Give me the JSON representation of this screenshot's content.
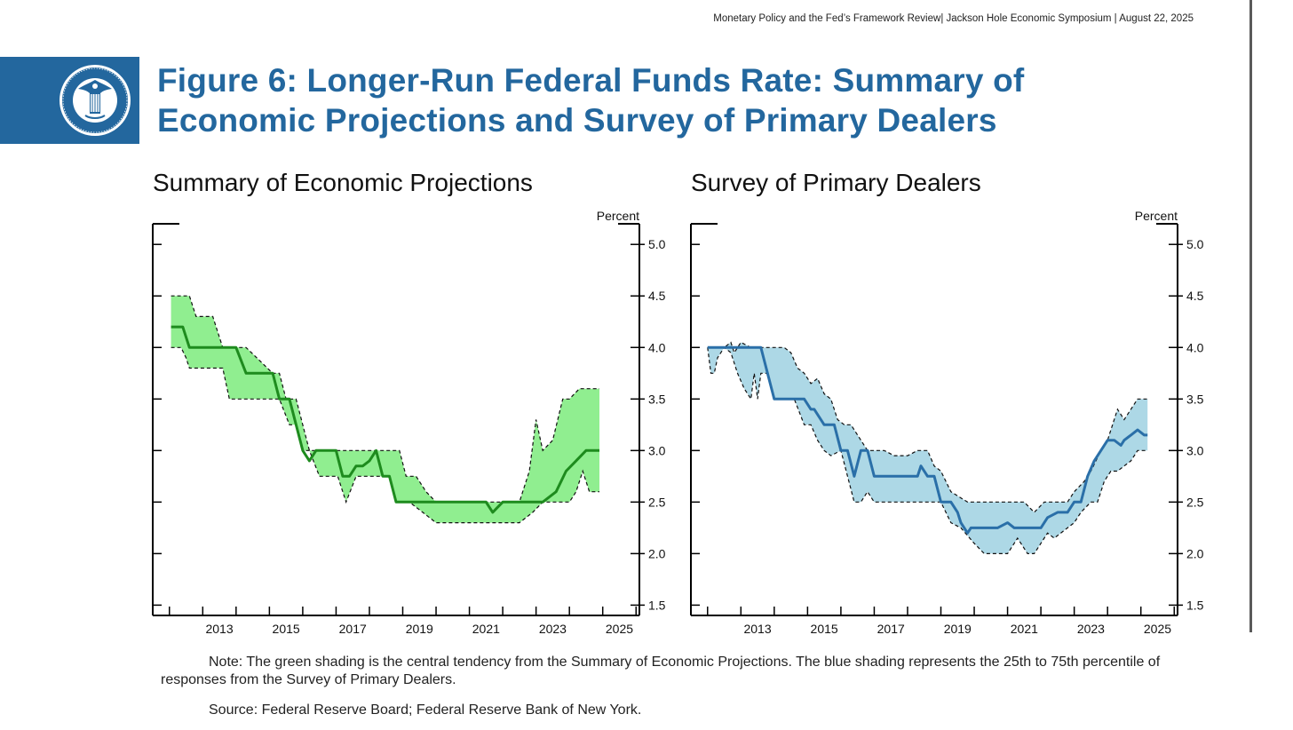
{
  "header": {
    "line": "Monetary Policy and the Fed’s Framework Review| Jackson Hole Economic Symposium | August 22, 2025"
  },
  "title": {
    "line1": "Figure 6: Longer-Run Federal Funds Rate: Summary of",
    "line2": "Economic Projections and Survey of Primary Dealers"
  },
  "logo": {
    "icon": "federal-reserve-seal-icon",
    "text": "BOARD OF GOVERNORS THE FEDERAL RESERVE SYSTEM"
  },
  "colors": {
    "title_blue": "#23679e",
    "sep_fill": "#90ee90",
    "sep_line": "#1e8b1e",
    "spd_fill": "#add8e6",
    "spd_line": "#2a6fa8"
  },
  "chart_data": [
    {
      "type": "area",
      "title": "Summary of Economic Projections",
      "ylabel": "Percent",
      "ylim": [
        1.4,
        5.2
      ],
      "xlim": [
        2011.5,
        2026.1
      ],
      "y_ticks": [
        "5.0",
        "4.5",
        "4.0",
        "3.5",
        "3.0",
        "2.5",
        "2.0",
        "1.5"
      ],
      "x_ticks": [
        "2013",
        "2015",
        "2017",
        "2019",
        "2021",
        "2023",
        "2025"
      ],
      "grid": false,
      "legend": "none",
      "series": [
        {
          "role": "central tendency upper",
          "x": [
            2012.05,
            2012.6,
            2012.8,
            2013.3,
            2013.6,
            2014.3,
            2014.3,
            2015.1,
            2015.3,
            2015.5,
            2015.8,
            2016.0,
            2016.2,
            2016.4,
            2017.0,
            2018.0,
            2018.9,
            2019.1,
            2019.4,
            2019.7,
            2020.0,
            2020.6,
            2021.6,
            2022.0,
            2022.5,
            2022.6,
            2022.8,
            2023.0,
            2023.2,
            2023.5,
            2023.8,
            2024.0,
            2024.3,
            2024.6,
            2024.9
          ],
          "y": [
            4.5,
            4.5,
            4.3,
            4.3,
            4.0,
            4.0,
            4.0,
            3.75,
            3.75,
            3.5,
            3.5,
            3.25,
            3.0,
            3.0,
            3.0,
            3.0,
            3.0,
            2.75,
            2.75,
            2.6,
            2.5,
            2.5,
            2.5,
            2.5,
            2.5,
            2.6,
            2.8,
            3.3,
            3.0,
            3.1,
            3.5,
            3.5,
            3.6,
            3.6,
            3.6
          ]
        },
        {
          "role": "central tendency lower",
          "x": [
            2012.05,
            2012.35,
            2012.5,
            2012.6,
            2013.1,
            2013.6,
            2013.8,
            2014.5,
            2015.1,
            2015.3,
            2015.6,
            2015.8,
            2016.0,
            2016.2,
            2016.5,
            2016.8,
            2017.05,
            2017.3,
            2017.6,
            2018.0,
            2018.3,
            2018.6,
            2018.8,
            2019.2,
            2019.6,
            2020.0,
            2020.5,
            2021.0,
            2021.5,
            2022.0,
            2022.5,
            2022.9,
            2023.2,
            2023.6,
            2024.0,
            2024.2,
            2024.4,
            2024.6,
            2024.9
          ],
          "y": [
            4.0,
            4.0,
            3.9,
            3.8,
            3.8,
            3.8,
            3.5,
            3.5,
            3.5,
            3.5,
            3.25,
            3.25,
            3.0,
            3.0,
            2.75,
            2.75,
            2.75,
            2.5,
            2.75,
            2.75,
            2.75,
            2.75,
            2.5,
            2.5,
            2.4,
            2.3,
            2.3,
            2.3,
            2.3,
            2.3,
            2.3,
            2.4,
            2.5,
            2.5,
            2.5,
            2.6,
            2.8,
            2.6,
            2.6
          ]
        },
        {
          "role": "midpoint",
          "x": [
            2012.05,
            2012.4,
            2012.6,
            2013.1,
            2013.6,
            2014.0,
            2014.3,
            2014.5,
            2015.1,
            2015.3,
            2015.6,
            2015.8,
            2016.0,
            2016.2,
            2016.4,
            2016.6,
            2017.0,
            2017.2,
            2017.4,
            2017.6,
            2017.8,
            2018.0,
            2018.2,
            2018.4,
            2018.6,
            2018.8,
            2019.0,
            2019.6,
            2020.0,
            2020.6,
            2021.1,
            2021.5,
            2021.7,
            2022.0,
            2022.4,
            2022.8,
            2023.2,
            2023.6,
            2023.9,
            2024.2,
            2024.5,
            2024.9
          ],
          "y": [
            4.2,
            4.2,
            4.0,
            4.0,
            4.0,
            4.0,
            3.75,
            3.75,
            3.75,
            3.5,
            3.5,
            3.25,
            3.0,
            2.9,
            3.0,
            3.0,
            3.0,
            2.75,
            2.75,
            2.85,
            2.85,
            2.9,
            3.0,
            2.75,
            2.75,
            2.5,
            2.5,
            2.5,
            2.5,
            2.5,
            2.5,
            2.5,
            2.4,
            2.5,
            2.5,
            2.5,
            2.5,
            2.6,
            2.8,
            2.9,
            3.0,
            3.0
          ]
        }
      ]
    },
    {
      "type": "area",
      "title": "Survey of Primary Dealers",
      "ylabel": "Percent",
      "ylim": [
        1.4,
        5.2
      ],
      "xlim": [
        2011.5,
        2026.1
      ],
      "y_ticks": [
        "5.0",
        "4.5",
        "4.0",
        "3.5",
        "3.0",
        "2.5",
        "2.0",
        "1.5"
      ],
      "x_ticks": [
        "2013",
        "2015",
        "2017",
        "2019",
        "2021",
        "2023",
        "2025"
      ],
      "grid": false,
      "legend": "none",
      "series": [
        {
          "role": "75th percentile",
          "x": [
            2012.0,
            2012.5,
            2012.7,
            2012.8,
            2013.0,
            2013.3,
            2014.3,
            2014.5,
            2014.7,
            2014.9,
            2015.1,
            2015.3,
            2015.5,
            2015.7,
            2015.9,
            2016.1,
            2016.3,
            2016.8,
            2017.0,
            2017.3,
            2017.6,
            2018.0,
            2018.3,
            2018.6,
            2018.8,
            2019.0,
            2019.3,
            2019.8,
            2020.2,
            2020.6,
            2021.0,
            2021.5,
            2021.8,
            2022.1,
            2022.4,
            2022.8,
            2023.0,
            2023.3,
            2023.5,
            2023.8,
            2024.0,
            2024.1,
            2024.3,
            2024.5,
            2024.9,
            2025.2
          ],
          "y": [
            4.0,
            4.0,
            4.05,
            3.95,
            4.05,
            4.0,
            4.0,
            3.95,
            3.8,
            3.75,
            3.65,
            3.7,
            3.55,
            3.5,
            3.3,
            3.25,
            3.25,
            3.0,
            3.0,
            3.0,
            2.95,
            2.95,
            3.0,
            3.0,
            2.85,
            2.8,
            2.6,
            2.5,
            2.5,
            2.5,
            2.5,
            2.5,
            2.4,
            2.5,
            2.5,
            2.5,
            2.6,
            2.7,
            2.8,
            3.0,
            3.1,
            3.2,
            3.4,
            3.3,
            3.5,
            3.5
          ]
        },
        {
          "role": "25th percentile",
          "x": [
            2012.0,
            2012.1,
            2012.2,
            2012.3,
            2012.5,
            2012.7,
            2012.9,
            2013.1,
            2013.3,
            2013.4,
            2013.5,
            2013.6,
            2013.8,
            2014.0,
            2014.3,
            2014.6,
            2014.9,
            2015.1,
            2015.3,
            2015.5,
            2015.7,
            2016.0,
            2016.2,
            2016.4,
            2016.6,
            2016.8,
            2017.0,
            2017.3,
            2017.6,
            2018.0,
            2018.5,
            2019.0,
            2019.3,
            2019.6,
            2020.0,
            2020.3,
            2020.6,
            2021.0,
            2021.3,
            2021.6,
            2021.8,
            2022.0,
            2022.2,
            2022.4,
            2022.8,
            2023.0,
            2023.2,
            2023.5,
            2023.7,
            2023.9,
            2024.1,
            2024.3,
            2024.5,
            2024.7,
            2024.9,
            2025.2
          ],
          "y": [
            4.0,
            3.75,
            3.75,
            3.9,
            4.0,
            3.95,
            3.75,
            3.6,
            3.5,
            3.75,
            3.5,
            3.75,
            3.75,
            3.5,
            3.5,
            3.5,
            3.25,
            3.25,
            3.1,
            3.0,
            2.95,
            3.0,
            2.75,
            2.5,
            2.5,
            2.6,
            2.5,
            2.5,
            2.5,
            2.5,
            2.5,
            2.5,
            2.3,
            2.25,
            2.1,
            2.0,
            2.0,
            2.0,
            2.15,
            2.0,
            2.0,
            2.1,
            2.2,
            2.15,
            2.25,
            2.3,
            2.4,
            2.5,
            2.5,
            2.7,
            2.8,
            2.8,
            2.85,
            2.9,
            3.0,
            3.0
          ]
        },
        {
          "role": "median",
          "x": [
            2012.0,
            2012.5,
            2012.7,
            2013.0,
            2013.6,
            2013.8,
            2014.0,
            2014.5,
            2014.9,
            2015.1,
            2015.2,
            2015.5,
            2015.8,
            2016.0,
            2016.2,
            2016.4,
            2016.6,
            2016.8,
            2017.0,
            2017.3,
            2017.6,
            2018.0,
            2018.3,
            2018.4,
            2018.6,
            2018.8,
            2019.0,
            2019.3,
            2019.5,
            2019.6,
            2019.8,
            2019.9,
            2020.0,
            2020.3,
            2020.7,
            2021.0,
            2021.2,
            2021.4,
            2021.8,
            2022.0,
            2022.2,
            2022.5,
            2022.8,
            2023.0,
            2023.2,
            2023.4,
            2023.6,
            2023.8,
            2024.0,
            2024.2,
            2024.4,
            2024.5,
            2024.7,
            2024.9,
            2025.1,
            2025.2
          ],
          "y": [
            4.0,
            4.0,
            4.0,
            4.0,
            4.0,
            3.75,
            3.5,
            3.5,
            3.5,
            3.4,
            3.4,
            3.25,
            3.25,
            3.0,
            3.0,
            2.75,
            3.0,
            3.0,
            2.75,
            2.75,
            2.75,
            2.75,
            2.75,
            2.85,
            2.75,
            2.75,
            2.5,
            2.5,
            2.4,
            2.3,
            2.2,
            2.25,
            2.25,
            2.25,
            2.25,
            2.3,
            2.25,
            2.25,
            2.25,
            2.25,
            2.35,
            2.4,
            2.4,
            2.5,
            2.5,
            2.75,
            2.9,
            3.0,
            3.1,
            3.1,
            3.05,
            3.1,
            3.15,
            3.2,
            3.15,
            3.15
          ]
        }
      ]
    }
  ],
  "note": "Note: The green shading is the central tendency from the Summary of Economic Projections. The blue shading represents the 25th to 75th percentile of responses from the Survey of Primary Dealers.",
  "source": "Source: Federal Reserve Board; Federal Reserve Bank of New York."
}
